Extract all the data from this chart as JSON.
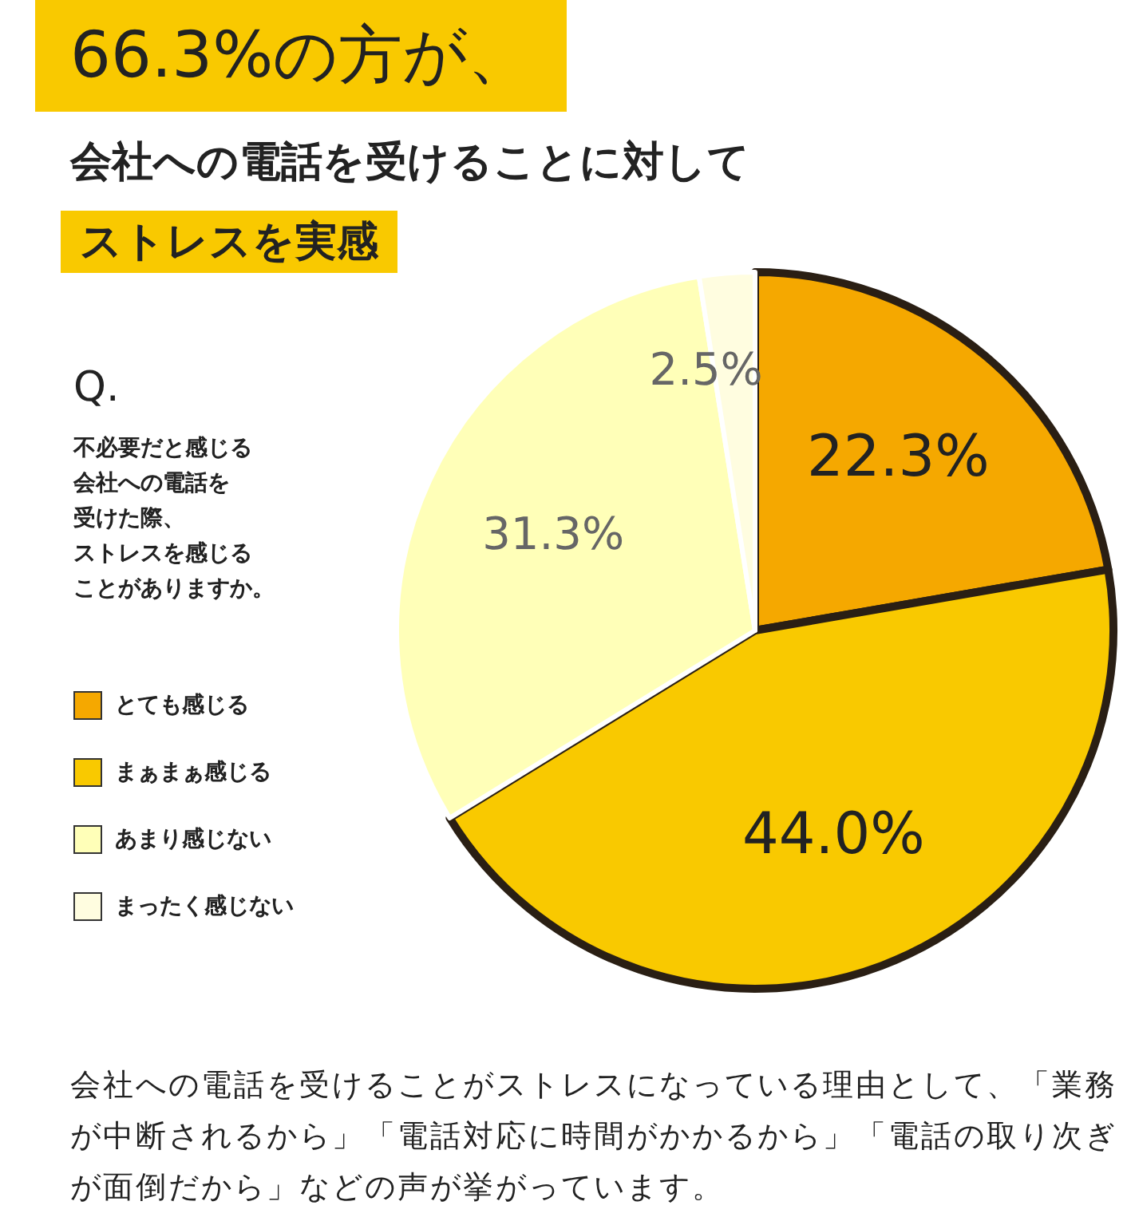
{
  "chart_data": {
    "type": "pie",
    "title": "66.3%の方が、",
    "subtitle": "会社への電話を受けることに対して",
    "categories": [
      "とても感じる",
      "まぁまぁ感じる",
      "あまり感じない",
      "まったく感じない"
    ],
    "values": [
      22.3,
      44.0,
      31.3,
      2.5
    ],
    "colors": [
      "#f5a800",
      "#f9c900",
      "#ffffb8",
      "#fffde0"
    ],
    "value_labels": [
      "22.3%",
      "44.0%",
      "31.3%",
      "2.5%"
    ],
    "legend": "left",
    "annotations": [
      "ストレスを実感",
      "Q.",
      "不必要だと感じる",
      "会社への電話を",
      "受けた際、",
      "ストレスを感じる",
      "ことがありますか。",
      "会社への電話を受けることがストレスになっている理由として、「業務が中断されるから」「電話対応に時間がかかるから」「電話の取り次ぎが面倒だから」などの声が挙がっています。"
    ]
  }
}
